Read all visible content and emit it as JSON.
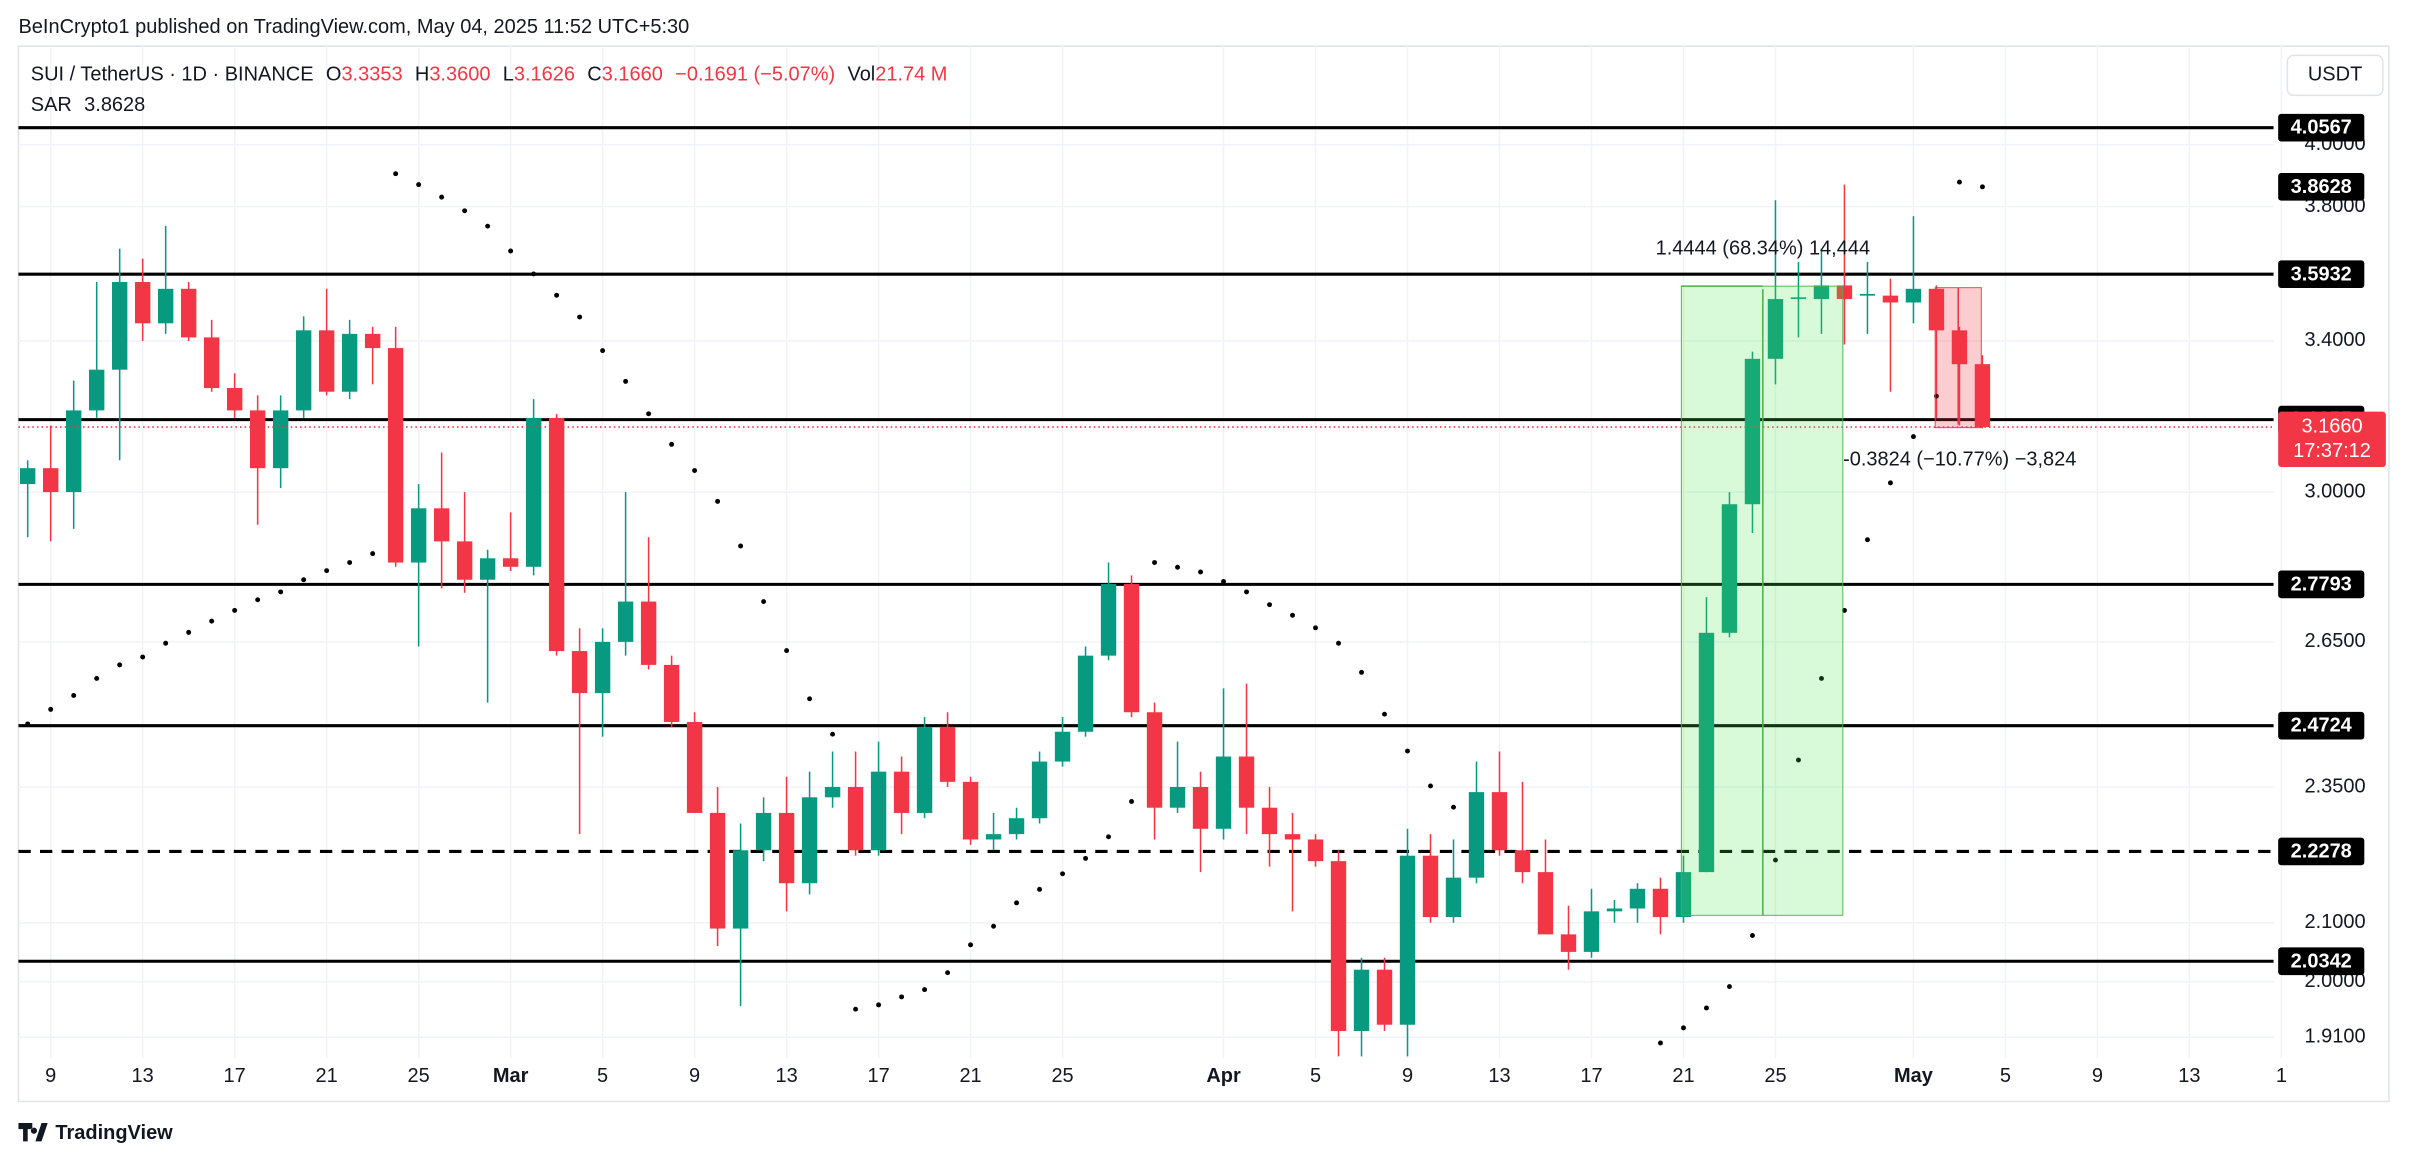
{
  "publisher": "BeInCrypto1 published on TradingView.com, May 04, 2025 11:52 UTC+5:30",
  "brand": "TradingView",
  "currency_button": "USDT",
  "chart_data": {
    "type": "candlestick",
    "legend": {
      "symbol": "SUI / TetherUS · 1D · BINANCE",
      "items": [
        {
          "key": "O",
          "value": "3.3353"
        },
        {
          "key": "H",
          "value": "3.3600"
        },
        {
          "key": "L",
          "value": "3.1626"
        },
        {
          "key": "C",
          "value": "3.1660"
        }
      ],
      "change": "−0.1691 (−5.07%)",
      "volume_key": "Vol",
      "volume": "21.74 M"
    },
    "up_color": "#089981",
    "down_color": "#f23645",
    "log_scale": true,
    "grid": true,
    "ylim": [
      1.877,
      4.34
    ],
    "yticks": [
      {
        "value": 4,
        "label": "4.0000"
      },
      {
        "value": 3.8,
        "label": "3.8000"
      },
      {
        "value": 3.4,
        "label": "3.4000"
      },
      {
        "value": 3,
        "label": "3.0000"
      },
      {
        "value": 2.65,
        "label": "2.6500"
      },
      {
        "value": 2.35,
        "label": "2.3500"
      },
      {
        "value": 2.1,
        "label": "2.1000"
      },
      {
        "value": 2,
        "label": "2.0000"
      },
      {
        "value": 1.91,
        "label": "1.9100"
      }
    ],
    "categories": [
      null,
      "9",
      null,
      null,
      null,
      "13",
      null,
      null,
      null,
      "17",
      null,
      null,
      null,
      "21",
      null,
      null,
      null,
      "25",
      null,
      null,
      null,
      "Mar",
      null,
      null,
      null,
      "5",
      null,
      null,
      null,
      "9",
      null,
      null,
      null,
      "13",
      null,
      null,
      null,
      "17",
      null,
      null,
      null,
      "21",
      null,
      null,
      null,
      "25",
      null,
      null,
      null,
      null,
      null,
      null,
      "Apr",
      null,
      null,
      null,
      "5",
      null,
      null,
      null,
      "9",
      null,
      null,
      null,
      "13",
      null,
      null,
      null,
      "17",
      null,
      null,
      null,
      "21",
      null,
      null,
      null,
      "25",
      null,
      null,
      null,
      null,
      null,
      "May",
      null,
      null,
      null,
      "5",
      null,
      null,
      null,
      "9",
      null,
      null,
      null,
      "13",
      null,
      null,
      null,
      "1"
    ],
    "open": [
      3.02,
      3.06,
      3.0,
      3.21,
      3.32,
      3.57,
      3.45,
      3.55,
      3.41,
      3.27,
      3.21,
      3.06,
      3.21,
      3.43,
      3.26,
      3.42,
      3.38,
      2.83,
      2.96,
      2.88,
      2.79,
      2.84,
      2.82,
      3.19,
      2.63,
      2.54,
      2.65,
      2.74,
      2.6,
      2.48,
      2.3,
      2.09,
      2.23,
      2.3,
      2.17,
      2.33,
      2.35,
      2.23,
      2.38,
      2.3,
      2.47,
      2.36,
      2.25,
      2.26,
      2.29,
      2.4,
      2.46,
      2.62,
      2.78,
      2.5,
      2.31,
      2.35,
      2.27,
      2.41,
      2.31,
      2.26,
      2.25,
      2.21,
      1.92,
      2.02,
      1.93,
      2.22,
      2.11,
      2.18,
      2.34,
      2.23,
      2.19,
      2.08,
      2.05,
      2.12,
      2.125,
      2.16,
      2.11,
      2.19,
      2.67,
      2.97,
      3.35,
      3.52,
      3.52,
      3.56,
      3.53,
      3.53,
      3.51,
      3.55,
      3.43,
      3.3353,
      null,
      null,
      null,
      null,
      null,
      null,
      null,
      null,
      null,
      null,
      null,
      null,
      null
    ],
    "high": [
      3.08,
      3.17,
      3.29,
      3.57,
      3.67,
      3.64,
      3.74,
      3.57,
      3.46,
      3.31,
      3.25,
      3.25,
      3.47,
      3.55,
      3.46,
      3.44,
      3.44,
      3.02,
      3.1,
      3.0,
      2.86,
      2.95,
      3.24,
      3.2,
      2.68,
      2.68,
      3.0,
      2.89,
      2.62,
      2.5,
      2.35,
      2.28,
      2.33,
      2.37,
      2.38,
      2.42,
      2.42,
      2.44,
      2.41,
      2.49,
      2.5,
      2.37,
      2.3,
      2.31,
      2.42,
      2.49,
      2.64,
      2.83,
      2.8,
      2.52,
      2.44,
      2.38,
      2.55,
      2.56,
      2.35,
      2.3,
      2.26,
      2.23,
      2.04,
      2.04,
      2.27,
      2.26,
      2.25,
      2.4,
      2.42,
      2.36,
      2.25,
      2.13,
      2.16,
      2.14,
      2.17,
      2.18,
      2.22,
      2.75,
      3.0,
      3.37,
      3.82,
      3.63,
      3.67,
      3.87,
      3.63,
      3.58,
      3.77,
      3.56,
      3.44,
      3.36,
      null,
      null,
      null,
      null,
      null,
      null,
      null,
      null,
      null,
      null,
      null,
      null,
      null
    ],
    "low": [
      2.89,
      2.88,
      2.91,
      3.19,
      3.08,
      3.4,
      3.42,
      3.4,
      3.26,
      3.19,
      2.92,
      3.01,
      3.19,
      3.25,
      3.24,
      3.28,
      2.82,
      2.64,
      2.77,
      2.76,
      2.52,
      2.81,
      2.8,
      2.62,
      2.26,
      2.45,
      2.62,
      2.59,
      2.47,
      2.3,
      2.06,
      1.96,
      2.21,
      2.12,
      2.15,
      2.31,
      2.22,
      2.22,
      2.26,
      2.29,
      2.35,
      2.24,
      2.23,
      2.25,
      2.28,
      2.39,
      2.45,
      2.61,
      2.49,
      2.25,
      2.3,
      2.19,
      2.25,
      2.26,
      2.2,
      2.12,
      2.2,
      1.88,
      1.88,
      1.92,
      1.88,
      2.1,
      2.1,
      2.17,
      2.22,
      2.17,
      2.08,
      2.02,
      2.04,
      2.1,
      2.1,
      2.08,
      2.1,
      2.19,
      2.66,
      2.9,
      3.28,
      3.41,
      3.42,
      3.39,
      3.42,
      3.26,
      3.45,
      3.19,
      3.17,
      3.1626,
      null,
      null,
      null,
      null,
      null,
      null,
      null,
      null,
      null,
      null,
      null,
      null,
      null
    ],
    "close": [
      3.06,
      3.0,
      3.21,
      3.32,
      3.57,
      3.45,
      3.55,
      3.41,
      3.27,
      3.21,
      3.06,
      3.21,
      3.43,
      3.26,
      3.42,
      3.38,
      2.83,
      2.96,
      2.88,
      2.79,
      2.84,
      2.82,
      3.19,
      2.63,
      2.54,
      2.65,
      2.74,
      2.6,
      2.48,
      2.3,
      2.09,
      2.23,
      2.3,
      2.17,
      2.33,
      2.35,
      2.23,
      2.38,
      2.3,
      2.47,
      2.36,
      2.25,
      2.26,
      2.29,
      2.4,
      2.46,
      2.62,
      2.78,
      2.5,
      2.31,
      2.35,
      2.27,
      2.41,
      2.31,
      2.26,
      2.25,
      2.21,
      1.92,
      2.02,
      1.93,
      2.22,
      2.11,
      2.18,
      2.34,
      2.23,
      2.19,
      2.08,
      2.05,
      2.12,
      2.125,
      2.16,
      2.11,
      2.19,
      2.67,
      2.97,
      3.35,
      3.52,
      3.525,
      3.56,
      3.52,
      3.535,
      3.51,
      3.55,
      3.43,
      3.335,
      3.166,
      null,
      null,
      null,
      null,
      null,
      null,
      null,
      null,
      null,
      null,
      null,
      null,
      null
    ],
    "sar": {
      "name": "SAR",
      "color": "#000000",
      "values": [
        2.476,
        2.506,
        2.535,
        2.571,
        2.6,
        2.617,
        2.647,
        2.671,
        2.696,
        2.72,
        2.744,
        2.762,
        2.79,
        2.811,
        2.83,
        2.851,
        3.905,
        3.87,
        3.83,
        3.787,
        3.739,
        3.663,
        3.594,
        3.531,
        3.468,
        3.373,
        3.288,
        3.201,
        3.121,
        3.054,
        2.977,
        2.869,
        2.74,
        2.631,
        2.528,
        2.455,
        1.955,
        1.962,
        1.975,
        1.987,
        2.015,
        2.062,
        2.094,
        2.135,
        2.159,
        2.187,
        2.215,
        2.255,
        2.322,
        2.83,
        2.819,
        2.808,
        2.786,
        2.762,
        2.733,
        2.709,
        2.681,
        2.647,
        2.584,
        2.496,
        2.421,
        2.352,
        2.311,
        null,
        null,
        null,
        null,
        null,
        null,
        null,
        null,
        1.901,
        1.925,
        1.957,
        1.992,
        2.078,
        2.212,
        2.403,
        2.571,
        2.72,
        2.884,
        3.023,
        3.141,
        3.248,
        3.878,
        3.8628,
        null,
        null,
        null,
        null,
        null,
        null,
        null,
        null,
        null,
        null,
        null,
        null,
        null
      ]
    },
    "levels": [
      4.0567,
      3.5932,
      3.1855,
      2.7793,
      2.4724,
      2.0342
    ],
    "dashed_levels": [
      2.2278
    ],
    "countdown": "17:37:12",
    "annotations": [
      "1.4444 (68.34%) 14,444",
      "-0.3824 (−10.77%) −3,824"
    ]
  }
}
